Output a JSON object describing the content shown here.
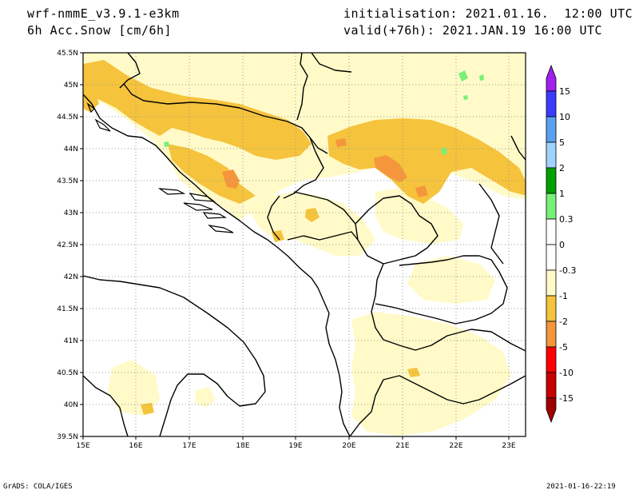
{
  "header": {
    "model": "wrf-nmmE_v3.9.1-e3km",
    "field": "6h Acc.Snow [cm/6h]",
    "init": "initialisation: 2021.01.16.  12:00 UTC",
    "valid": "valid(+76h): 2021.JAN.19 16:00 UTC"
  },
  "footer": {
    "left": "GrADS: COLA/IGES",
    "right": "2021-01-16-22:19"
  },
  "map": {
    "lon_range": [
      15,
      23.3
    ],
    "lat_range": [
      39.5,
      45.5
    ],
    "lon_ticks": [
      "15E",
      "16E",
      "17E",
      "18E",
      "19E",
      "20E",
      "21E",
      "22E",
      "23E"
    ],
    "lat_ticks": [
      "39.5N",
      "40N",
      "40.5N",
      "41N",
      "41.5N",
      "42N",
      "42.5N",
      "43N",
      "43.5N",
      "44N",
      "44.5N",
      "45N",
      "45.5N"
    ],
    "grid": true
  },
  "colorbar": {
    "labels": [
      "15",
      "10",
      "5",
      "2",
      "1",
      "0.3",
      "0",
      "-0.3",
      "-1",
      "-2",
      "-5",
      "-10",
      "-15"
    ],
    "colors": [
      "#a020f0",
      "#3c3cff",
      "#5aa0f0",
      "#a0d2ff",
      "#00a000",
      "#78f078",
      "#ffffff",
      "#fffac8",
      "#f5c33c",
      "#f5963c",
      "#ff0000",
      "#c80000",
      "#a00000",
      "#780000"
    ]
  },
  "colors": {
    "snow_light": "#fffac8",
    "snow_moderate": "#f5c33c",
    "snow_heavy": "#f5963c",
    "green_light": "#78f078",
    "coast": "#000000"
  }
}
